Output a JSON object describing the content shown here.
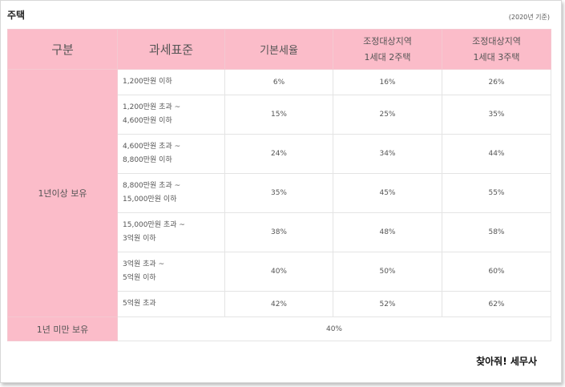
{
  "title": "주택",
  "basis": "(2020년 기준)",
  "headers": {
    "category": "구분",
    "tax_base": "과세표준",
    "basic_rate": "기본세율",
    "adjusted_2": [
      "조정대상지역",
      "1세대 2주택"
    ],
    "adjusted_3": [
      "조정대상지역",
      "1세대 3주택"
    ]
  },
  "group_over_1yr": "1년이상 보유",
  "rows": [
    {
      "range": [
        "1,200만원 이하"
      ],
      "basic": "6%",
      "two": "16%",
      "three": "26%"
    },
    {
      "range": [
        "1,200만원 초과 ~",
        "4,600만원 이하"
      ],
      "basic": "15%",
      "two": "25%",
      "three": "35%"
    },
    {
      "range": [
        "4,600만원 초과 ~",
        "8,800만원 이하"
      ],
      "basic": "24%",
      "two": "34%",
      "three": "44%"
    },
    {
      "range": [
        "8,800만원 초과 ~",
        "15,000만원 이하"
      ],
      "basic": "35%",
      "two": "45%",
      "three": "55%"
    },
    {
      "range": [
        "15,000만원 초과 ~",
        "3억원 이하"
      ],
      "basic": "38%",
      "two": "48%",
      "three": "58%"
    },
    {
      "range": [
        "3억원 초과 ~",
        "5억원 이하"
      ],
      "basic": "40%",
      "two": "50%",
      "three": "60%"
    },
    {
      "range": [
        "5억원 초과"
      ],
      "basic": "42%",
      "two": "52%",
      "three": "62%"
    }
  ],
  "group_under_1yr": "1년 미만 보유",
  "under_1yr_rate": "40%",
  "logo": "찾아줘! 세무사"
}
